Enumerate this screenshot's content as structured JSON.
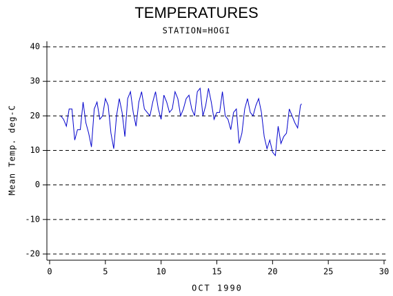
{
  "chart_data": {
    "type": "line",
    "title": "TEMPERATURES",
    "subtitle": "STATION=HOGI",
    "x_label": "OCT 1990",
    "y_label": "Mean Temp. deg-C",
    "xlim": [
      0,
      30
    ],
    "xticks": [
      0,
      5,
      10,
      15,
      20,
      25,
      30
    ],
    "ylim": [
      -20,
      40
    ],
    "yticks": [
      -20,
      -10,
      0,
      10,
      20,
      30,
      40
    ],
    "grid": true,
    "series": [
      {
        "color": "#0000cc",
        "x": [
          1.0,
          1.25,
          1.5,
          1.75,
          2.0,
          2.25,
          2.5,
          2.75,
          3.0,
          3.25,
          3.5,
          3.75,
          4.0,
          4.25,
          4.5,
          4.75,
          5.0,
          5.25,
          5.5,
          5.75,
          6.0,
          6.25,
          6.5,
          6.75,
          7.0,
          7.25,
          7.5,
          7.75,
          8.0,
          8.25,
          8.5,
          8.75,
          9.0,
          9.25,
          9.5,
          9.75,
          10.0,
          10.25,
          10.5,
          10.75,
          11.0,
          11.25,
          11.5,
          11.75,
          12.0,
          12.25,
          12.5,
          12.75,
          13.0,
          13.25,
          13.5,
          13.75,
          14.0,
          14.25,
          14.5,
          14.75,
          15.0,
          15.25,
          15.5,
          15.75,
          16.0,
          16.25,
          16.5,
          16.75,
          17.0,
          17.25,
          17.5,
          17.75,
          18.0,
          18.25,
          18.5,
          18.75,
          19.0,
          19.25,
          19.5,
          19.75,
          20.0,
          20.25,
          20.5,
          20.75,
          21.0,
          21.25,
          21.5,
          21.75,
          22.0,
          22.25,
          22.5,
          22.6
        ],
        "values": [
          20,
          19,
          17,
          22,
          22,
          13,
          16,
          16,
          24,
          18,
          15,
          11,
          22,
          24,
          19,
          20,
          25,
          23,
          15,
          10.5,
          20,
          25,
          21,
          14,
          25,
          27,
          21,
          17,
          24,
          27,
          22,
          21,
          20,
          24,
          27,
          22,
          19,
          26,
          24,
          21,
          22,
          27,
          25,
          20,
          22,
          25,
          26,
          22,
          20,
          27,
          28,
          20,
          23,
          28,
          24,
          19,
          21,
          21,
          27,
          20,
          19,
          16,
          21,
          22,
          12,
          15,
          22,
          25,
          21,
          20,
          23,
          25,
          21,
          14,
          10.5,
          13,
          9.5,
          8.5,
          17,
          12,
          14,
          15,
          22,
          20,
          18,
          16.5,
          23,
          23.5
        ]
      }
    ]
  }
}
